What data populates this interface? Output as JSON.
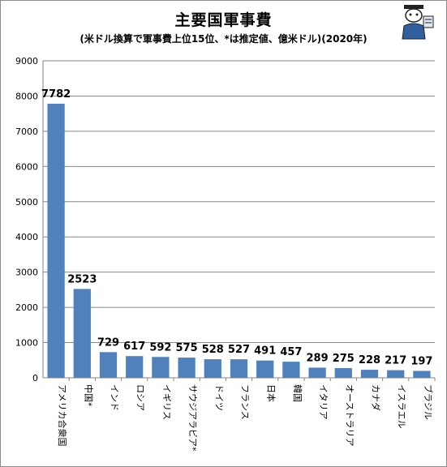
{
  "chart_data": {
    "type": "bar",
    "title": "主要国軍事費",
    "subtitle": "(米ドル換算で軍事費上位15位、*は推定値、億米ドル)(2020年)",
    "categories": [
      "アメリカ合衆国",
      "中国*",
      "インド",
      "ロシア",
      "イギリス",
      "サウジアラビア*",
      "ドイツ",
      "フランス",
      "日本",
      "韓国",
      "イタリア",
      "オーストラリア",
      "カナダ",
      "イスラエル",
      "ブラジル"
    ],
    "values": [
      7782,
      2523,
      729,
      617,
      592,
      575,
      528,
      527,
      491,
      457,
      289,
      275,
      228,
      217,
      197
    ],
    "ylim": [
      0,
      9000
    ],
    "yticks": [
      0,
      1000,
      2000,
      3000,
      4000,
      5000,
      6000,
      7000,
      8000,
      9000
    ],
    "grid": true,
    "legend": "none",
    "bar_color": "#4f81bd"
  }
}
